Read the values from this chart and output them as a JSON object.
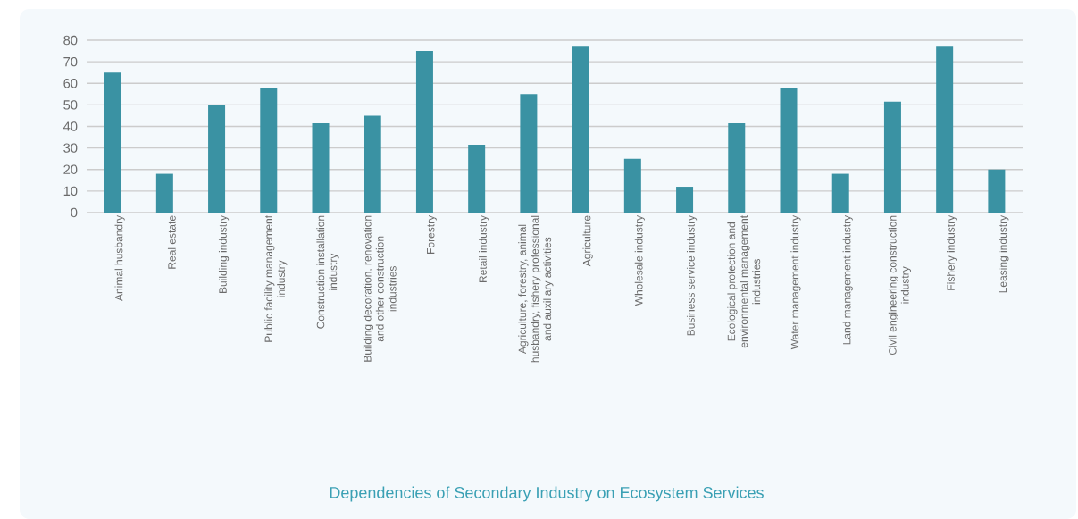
{
  "chart_data": {
    "type": "bar",
    "title": "Dependencies of Secondary Industry on Ecosystem Services",
    "categories": [
      "Animal husbandry",
      "Real estate",
      "Building industry",
      "Public facility management industry",
      "Construction installation industry",
      "Building decoration, renovation and other construction industries",
      "Forestry",
      "Retail industry",
      "Agriculture, forestry, animal husbandry, fishery professional and auxiliary activities",
      "Agriculture",
      "Wholesale industry",
      "Business service industry",
      "Ecological protection and environmental management industries",
      "Water management industry",
      "Land management industry",
      "Civil engineering construction industry",
      "Fishery industry",
      "Leasing industry"
    ],
    "values": [
      65,
      18,
      50,
      58,
      41.5,
      45,
      75,
      31.5,
      55,
      77,
      25,
      12,
      41.5,
      58,
      18,
      51.5,
      77,
      20
    ],
    "color": "#3a92a3",
    "ylim": [
      0,
      80
    ],
    "yticks": [
      0,
      10,
      20,
      30,
      40,
      50,
      60,
      70,
      80
    ],
    "grid": "y"
  }
}
